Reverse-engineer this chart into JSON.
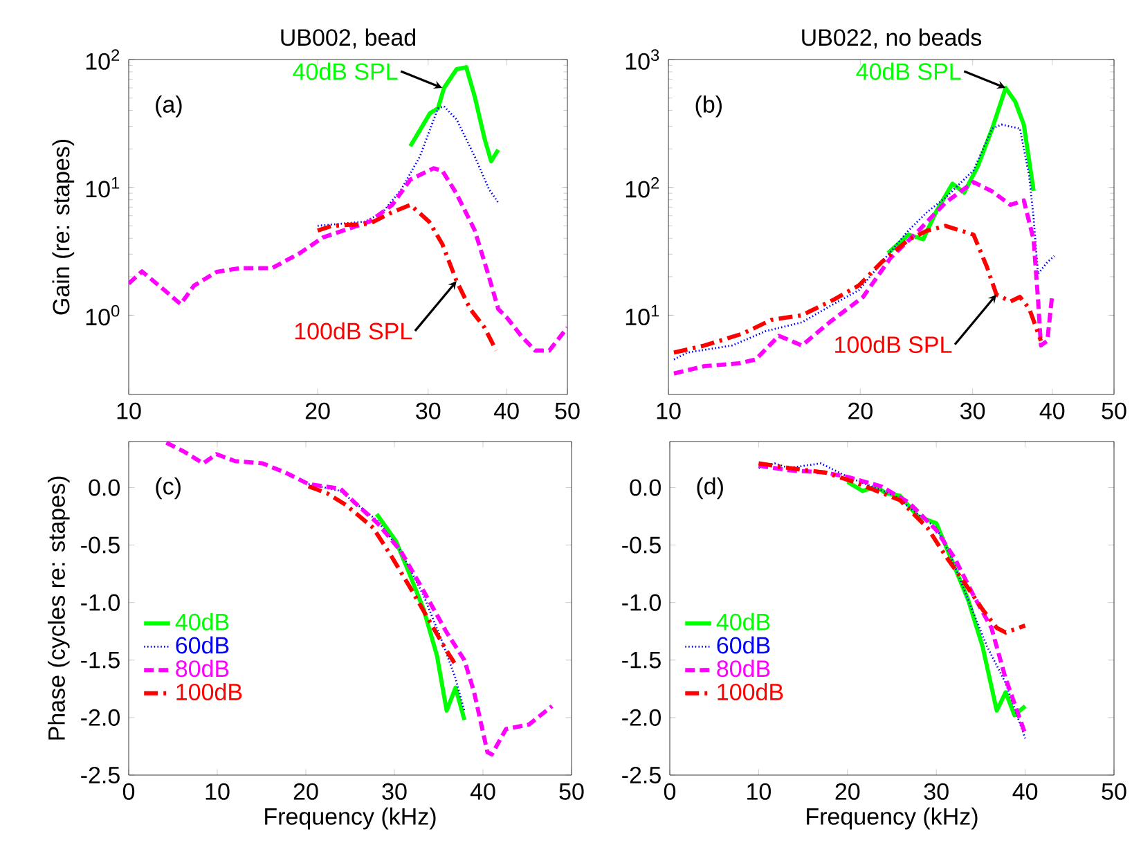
{
  "chart_data": [
    {
      "type": "line",
      "title": "UB002, bead",
      "ylabel": "Gain (re: stapes)",
      "log": "xy",
      "xlim": [
        10,
        50
      ],
      "ylim": [
        0.24,
        100
      ],
      "xticks": [
        10,
        20,
        30,
        40,
        50
      ],
      "yticks": [
        {
          "value": 1,
          "label": "10$^{0}$"
        },
        {
          "value": 10,
          "label": "10$^{1}$"
        },
        {
          "value": 100,
          "label": "10$^{2}$"
        }
      ],
      "annotations": [
        "(a)",
        {
          "text": "40dB SPL",
          "x": 31.6,
          "y": 60
        },
        {
          "text": "100dB SPL",
          "x": 33.3,
          "y": 1.85
        }
      ],
      "series": [
        {
          "color": "#00ff00",
          "line_style": "solid",
          "x": [
            28.1,
            30.2,
            31.1,
            31.8,
            33.3,
            34.5,
            35.6,
            36.9,
            37.8,
            38.8
          ],
          "values": [
            21,
            38,
            41.5,
            60,
            84,
            87,
            51,
            24,
            16,
            19.7
          ]
        },
        {
          "color": "#0000ff",
          "line_style": "dotted",
          "x": [
            20,
            23.8,
            25.4,
            27.2,
            29.1,
            31.1,
            31.8,
            33.3,
            35.6,
            37.5,
            38.8
          ],
          "values": [
            5.0,
            5.4,
            6.4,
            9.7,
            17.4,
            41.5,
            43,
            34,
            17.4,
            9.7,
            7.6
          ]
        },
        {
          "color": "#ff00ff",
          "line_style": "dashed",
          "x": [
            10,
            10.5,
            11.4,
            12.1,
            12.7,
            13.8,
            15,
            16.9,
            18.7,
            20.4,
            24.2,
            26.3,
            28.1,
            30.6,
            31.6,
            33.3,
            35.6,
            37.5,
            38.8,
            40.1,
            42.3,
            44.4,
            46.8,
            50
          ],
          "values": [
            1.77,
            2.2,
            1.57,
            1.22,
            1.7,
            2.18,
            2.33,
            2.33,
            3.04,
            4.06,
            5.4,
            7.3,
            11.5,
            14.1,
            13.5,
            8.9,
            4.6,
            2.0,
            1.12,
            0.95,
            0.68,
            0.53,
            0.53,
            0.8
          ]
        },
        {
          "color": "#ff0000",
          "line_style": "dashdot",
          "x": [
            20,
            21.1,
            24.2,
            26.3,
            28.1,
            30.1,
            31.6,
            33.3,
            35,
            36.9,
            38.5
          ],
          "values": [
            4.6,
            5.0,
            5.2,
            6.4,
            7.3,
            5.4,
            3.6,
            1.85,
            1.12,
            0.8,
            0.53
          ]
        }
      ]
    },
    {
      "type": "line",
      "title": "UB022, no beads",
      "log": "xy",
      "xlim": [
        10,
        50
      ],
      "ylim": [
        2.4,
        1000
      ],
      "xticks": [
        10,
        20,
        30,
        40,
        50
      ],
      "yticks": [
        {
          "value": 10,
          "label": "10$^{1}$"
        },
        {
          "value": 100,
          "label": "10$^{2}$"
        },
        {
          "value": 1000,
          "label": "10$^{3}$"
        }
      ],
      "annotations": [
        "(b)",
        {
          "text": "40dB SPL",
          "x": 33.8,
          "y": 600
        },
        {
          "text": "100dB SPL",
          "x": 32.7,
          "y": 14.5
        }
      ],
      "series": [
        {
          "color": "#00ff00",
          "line_style": "solid",
          "x": [
            22.1,
            23.8,
            25.1,
            26.3,
            27.9,
            29.1,
            30.6,
            32.2,
            33.8,
            35,
            36.1,
            37.4
          ],
          "values": [
            30.6,
            42.7,
            39.3,
            64.6,
            107,
            91,
            148,
            288,
            600,
            468,
            309,
            94
          ]
        },
        {
          "color": "#0000ff",
          "line_style": "dotted",
          "x": [
            10.2,
            10.7,
            12.6,
            14.2,
            16.2,
            18.2,
            19.9,
            21.6,
            23.8,
            25.5,
            27.2,
            30.1,
            32.2,
            33.3,
            35.6,
            36.8,
            37.4,
            38,
            39.3,
            40.3
          ],
          "values": [
            4.5,
            5.1,
            5.8,
            7.5,
            8.8,
            12.3,
            15.7,
            25.9,
            46,
            64.6,
            83,
            136,
            288,
            310,
            288,
            123,
            58,
            21,
            26,
            29
          ]
        },
        {
          "color": "#ff00ff",
          "line_style": "dashed",
          "x": [
            10.2,
            11.4,
            12.9,
            13.7,
            14.9,
            16.2,
            17.9,
            20.2,
            22.3,
            24.7,
            27.2,
            30.1,
            32.2,
            34.4,
            36.1,
            37.4,
            38,
            38.4,
            39.3,
            40
          ],
          "values": [
            3.5,
            4.0,
            4.2,
            4.5,
            6.9,
            5.8,
            8.8,
            13.9,
            28,
            46,
            76,
            110,
            93,
            73,
            79,
            39,
            13.3,
            5.8,
            6.3,
            14.5
          ]
        },
        {
          "color": "#ff0000",
          "line_style": "dashdot",
          "x": [
            10.2,
            11.4,
            13.1,
            14.5,
            16.2,
            18.2,
            19.9,
            21.6,
            23.8,
            25.5,
            27.2,
            30.1,
            31.6,
            32.7,
            34.4,
            35.6,
            36.8,
            38.4
          ],
          "values": [
            5.1,
            5.8,
            7.2,
            9.2,
            10,
            13.3,
            17.1,
            26,
            39,
            46,
            50,
            42.7,
            23.8,
            14.5,
            12.8,
            13.9,
            11.3,
            6.3
          ]
        }
      ]
    },
    {
      "type": "line",
      "xlabel": "Frequency (kHz)",
      "ylabel": "Phase (cycles re: stapes)",
      "xlim": [
        0,
        50
      ],
      "ylim": [
        -2.5,
        0.4
      ],
      "legend": "left",
      "xticks": [
        0,
        10,
        20,
        30,
        40,
        50
      ],
      "yticks": [
        {
          "value": -2.5,
          "label": "-2.5"
        },
        {
          "value": -2,
          "label": "-2.0"
        },
        {
          "value": -1.5,
          "label": "-1.5"
        },
        {
          "value": -1,
          "label": "-1.0"
        },
        {
          "value": -0.5,
          "label": "-0.5"
        },
        {
          "value": 0,
          "label": "0.0"
        }
      ],
      "annotations": [
        "(c)"
      ],
      "series": [
        {
          "name": "40dB",
          "color": "#00ff00",
          "line_style": "solid",
          "x": [
            28,
            30.2,
            31.7,
            33.3,
            34.8,
            35.9,
            36.9,
            37.9
          ],
          "values": [
            -0.23,
            -0.47,
            -0.75,
            -1.06,
            -1.46,
            -1.94,
            -1.74,
            -2.02
          ]
        },
        {
          "name": "60dB",
          "color": "#0000ff",
          "line_style": "dotted",
          "x": [
            20.3,
            23.9,
            25.5,
            28.1,
            30.7,
            33.3,
            35.4,
            36.9,
            37.9
          ],
          "values": [
            0.03,
            -0.03,
            -0.13,
            -0.29,
            -0.55,
            -0.94,
            -1.34,
            -1.66,
            -1.94
          ]
        },
        {
          "name": "80dB",
          "color": "#ff00ff",
          "line_style": "dashed",
          "x": [
            4.25,
            6.3,
            8.4,
            9.9,
            12,
            15.1,
            17.7,
            20.3,
            23.9,
            25.5,
            28.1,
            30.7,
            33.3,
            35.9,
            37.9,
            39,
            40.5,
            41,
            42.6,
            45.2,
            47.8
          ],
          "values": [
            0.39,
            0.31,
            0.21,
            0.29,
            0.23,
            0.21,
            0.13,
            0.03,
            -0.01,
            -0.13,
            -0.31,
            -0.55,
            -0.9,
            -1.26,
            -1.5,
            -1.78,
            -2.3,
            -2.32,
            -2.1,
            -2.06,
            -1.9
          ]
        },
        {
          "name": "100dB",
          "color": "#ff0000",
          "line_style": "dashdot",
          "x": [
            20.3,
            22.4,
            24.5,
            27.6,
            29.6,
            31.7,
            33.8,
            35.9,
            36.9
          ],
          "values": [
            0.01,
            -0.05,
            -0.15,
            -0.35,
            -0.59,
            -0.86,
            -1.14,
            -1.42,
            -1.54
          ]
        }
      ]
    },
    {
      "type": "line",
      "xlabel": "Frequency (kHz)",
      "xlim": [
        0,
        50
      ],
      "ylim": [
        -2.5,
        0.4
      ],
      "legend": "left",
      "xticks": [
        0,
        10,
        20,
        30,
        40,
        50
      ],
      "yticks": [
        {
          "value": -2.5,
          "label": "-2.5"
        },
        {
          "value": -2,
          "label": "-2.0"
        },
        {
          "value": -1.5,
          "label": "-1.5"
        },
        {
          "value": -1,
          "label": "-1.0"
        },
        {
          "value": -0.5,
          "label": "-0.5"
        },
        {
          "value": 0,
          "label": "0.0"
        }
      ],
      "annotations": [
        "(d)"
      ],
      "series": [
        {
          "name": "40dB",
          "color": "#00ff00",
          "line_style": "solid",
          "x": [
            20,
            21.7,
            23.3,
            24.3,
            25.9,
            27.9,
            30,
            32.1,
            33.6,
            35.2,
            36.8,
            37.8,
            38.8,
            40
          ],
          "values": [
            0.05,
            -0.03,
            0.01,
            -0.05,
            -0.07,
            -0.25,
            -0.31,
            -0.7,
            -0.98,
            -1.38,
            -1.94,
            -1.78,
            -1.98,
            -1.9
          ]
        },
        {
          "name": "60dB",
          "color": "#0000ff",
          "line_style": "dotted",
          "x": [
            10,
            11.8,
            13.4,
            17,
            20.1,
            22.7,
            25.3,
            27.9,
            30,
            31.6,
            33.6,
            35.7,
            37.8,
            40
          ],
          "values": [
            0.17,
            0.21,
            0.17,
            0.21,
            0.09,
            0.01,
            -0.07,
            -0.23,
            -0.35,
            -0.59,
            -0.98,
            -1.38,
            -1.7,
            -2.18
          ]
        },
        {
          "name": "80dB",
          "color": "#ff00ff",
          "line_style": "dashed",
          "x": [
            10,
            13.4,
            17.5,
            20.1,
            23.8,
            26.9,
            30,
            32.1,
            34.2,
            36.2,
            37.8,
            40
          ],
          "values": [
            0.19,
            0.15,
            0.13,
            0.09,
            0.01,
            -0.13,
            -0.37,
            -0.62,
            -0.94,
            -1.22,
            -1.66,
            -2.14
          ]
        },
        {
          "name": "100dB",
          "color": "#ff0000",
          "line_style": "dashdot",
          "x": [
            10,
            13.4,
            17.5,
            20.7,
            23.3,
            25.9,
            29,
            31,
            33.1,
            35.2,
            36.8,
            37.8,
            40
          ],
          "values": [
            0.21,
            0.17,
            0.13,
            0.05,
            -0.03,
            -0.11,
            -0.35,
            -0.59,
            -0.82,
            -1.06,
            -1.22,
            -1.26,
            -1.2
          ]
        }
      ]
    }
  ]
}
